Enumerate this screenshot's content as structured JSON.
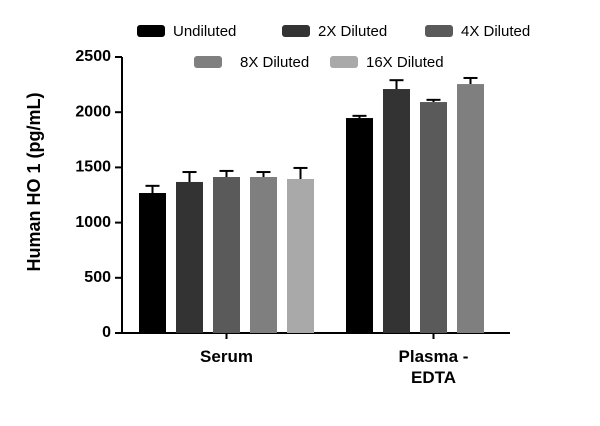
{
  "chart_data": {
    "type": "bar",
    "y_label": "Human  HO 1 (pg/mL)",
    "categories": [
      "Serum",
      "Plasma - EDTA"
    ],
    "series": [
      {
        "name": "Undiluted",
        "color": "#000000",
        "values": [
          1268,
          1947
        ],
        "errors": [
          65,
          20
        ]
      },
      {
        "name": "2X Diluted",
        "color": "#333333",
        "values": [
          1368,
          2210
        ],
        "errors": [
          90,
          80
        ]
      },
      {
        "name": "4X Diluted",
        "color": "#5a5a5a",
        "values": [
          1413,
          2092
        ],
        "errors": [
          55,
          20
        ]
      },
      {
        "name": "8X Diluted",
        "color": "#7f7f7f",
        "values": [
          1413,
          2255
        ],
        "errors": [
          45,
          55
        ]
      },
      {
        "name": "16X Diluted",
        "color": "#a9a9a9",
        "values": [
          1395,
          null
        ],
        "errors": [
          100,
          null
        ]
      }
    ],
    "ylim": [
      0,
      2500
    ],
    "yticks": [
      0,
      500,
      1000,
      1500,
      2000,
      2500
    ]
  }
}
